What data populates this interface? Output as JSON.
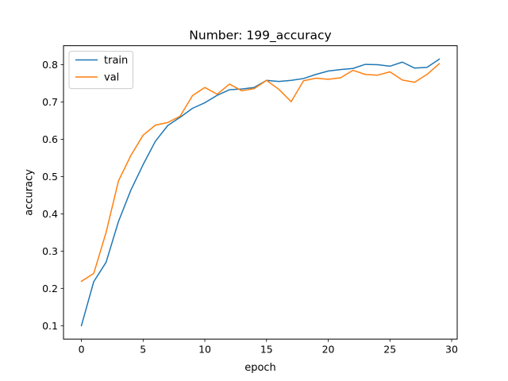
{
  "chart_data": {
    "type": "line",
    "title": "Number: 199_accuracy",
    "xlabel": "epoch",
    "ylabel": "accuracy",
    "xlim": [
      -1.45,
      30.45
    ],
    "ylim": [
      0.064,
      0.851
    ],
    "xticks": [
      0,
      5,
      10,
      15,
      20,
      25,
      30
    ],
    "yticks": [
      0.1,
      0.2,
      0.3,
      0.4,
      0.5,
      0.6,
      0.7,
      0.8
    ],
    "xtick_labels": [
      "0",
      "5",
      "10",
      "15",
      "20",
      "25",
      "30"
    ],
    "ytick_labels": [
      "0.1",
      "0.2",
      "0.3",
      "0.4",
      "0.5",
      "0.6",
      "0.7",
      "0.8"
    ],
    "grid": false,
    "legend_position": "top-left",
    "x": [
      0,
      1,
      2,
      3,
      4,
      5,
      6,
      7,
      8,
      9,
      10,
      11,
      12,
      13,
      14,
      15,
      16,
      17,
      18,
      19,
      20,
      21,
      22,
      23,
      24,
      25,
      26,
      27,
      28,
      29
    ],
    "series": [
      {
        "name": "train",
        "color": "#1f77b4",
        "values": [
          0.1,
          0.218,
          0.27,
          0.379,
          0.463,
          0.532,
          0.595,
          0.637,
          0.659,
          0.683,
          0.698,
          0.718,
          0.733,
          0.735,
          0.739,
          0.758,
          0.755,
          0.758,
          0.763,
          0.774,
          0.783,
          0.787,
          0.79,
          0.801,
          0.8,
          0.796,
          0.807,
          0.791,
          0.793,
          0.815
        ]
      },
      {
        "name": "val",
        "color": "#ff7f0e",
        "values": [
          0.219,
          0.24,
          0.35,
          0.488,
          0.556,
          0.611,
          0.638,
          0.645,
          0.662,
          0.717,
          0.739,
          0.721,
          0.748,
          0.73,
          0.736,
          0.758,
          0.734,
          0.701,
          0.757,
          0.764,
          0.761,
          0.765,
          0.785,
          0.774,
          0.772,
          0.781,
          0.759,
          0.753,
          0.774,
          0.803
        ]
      }
    ]
  }
}
